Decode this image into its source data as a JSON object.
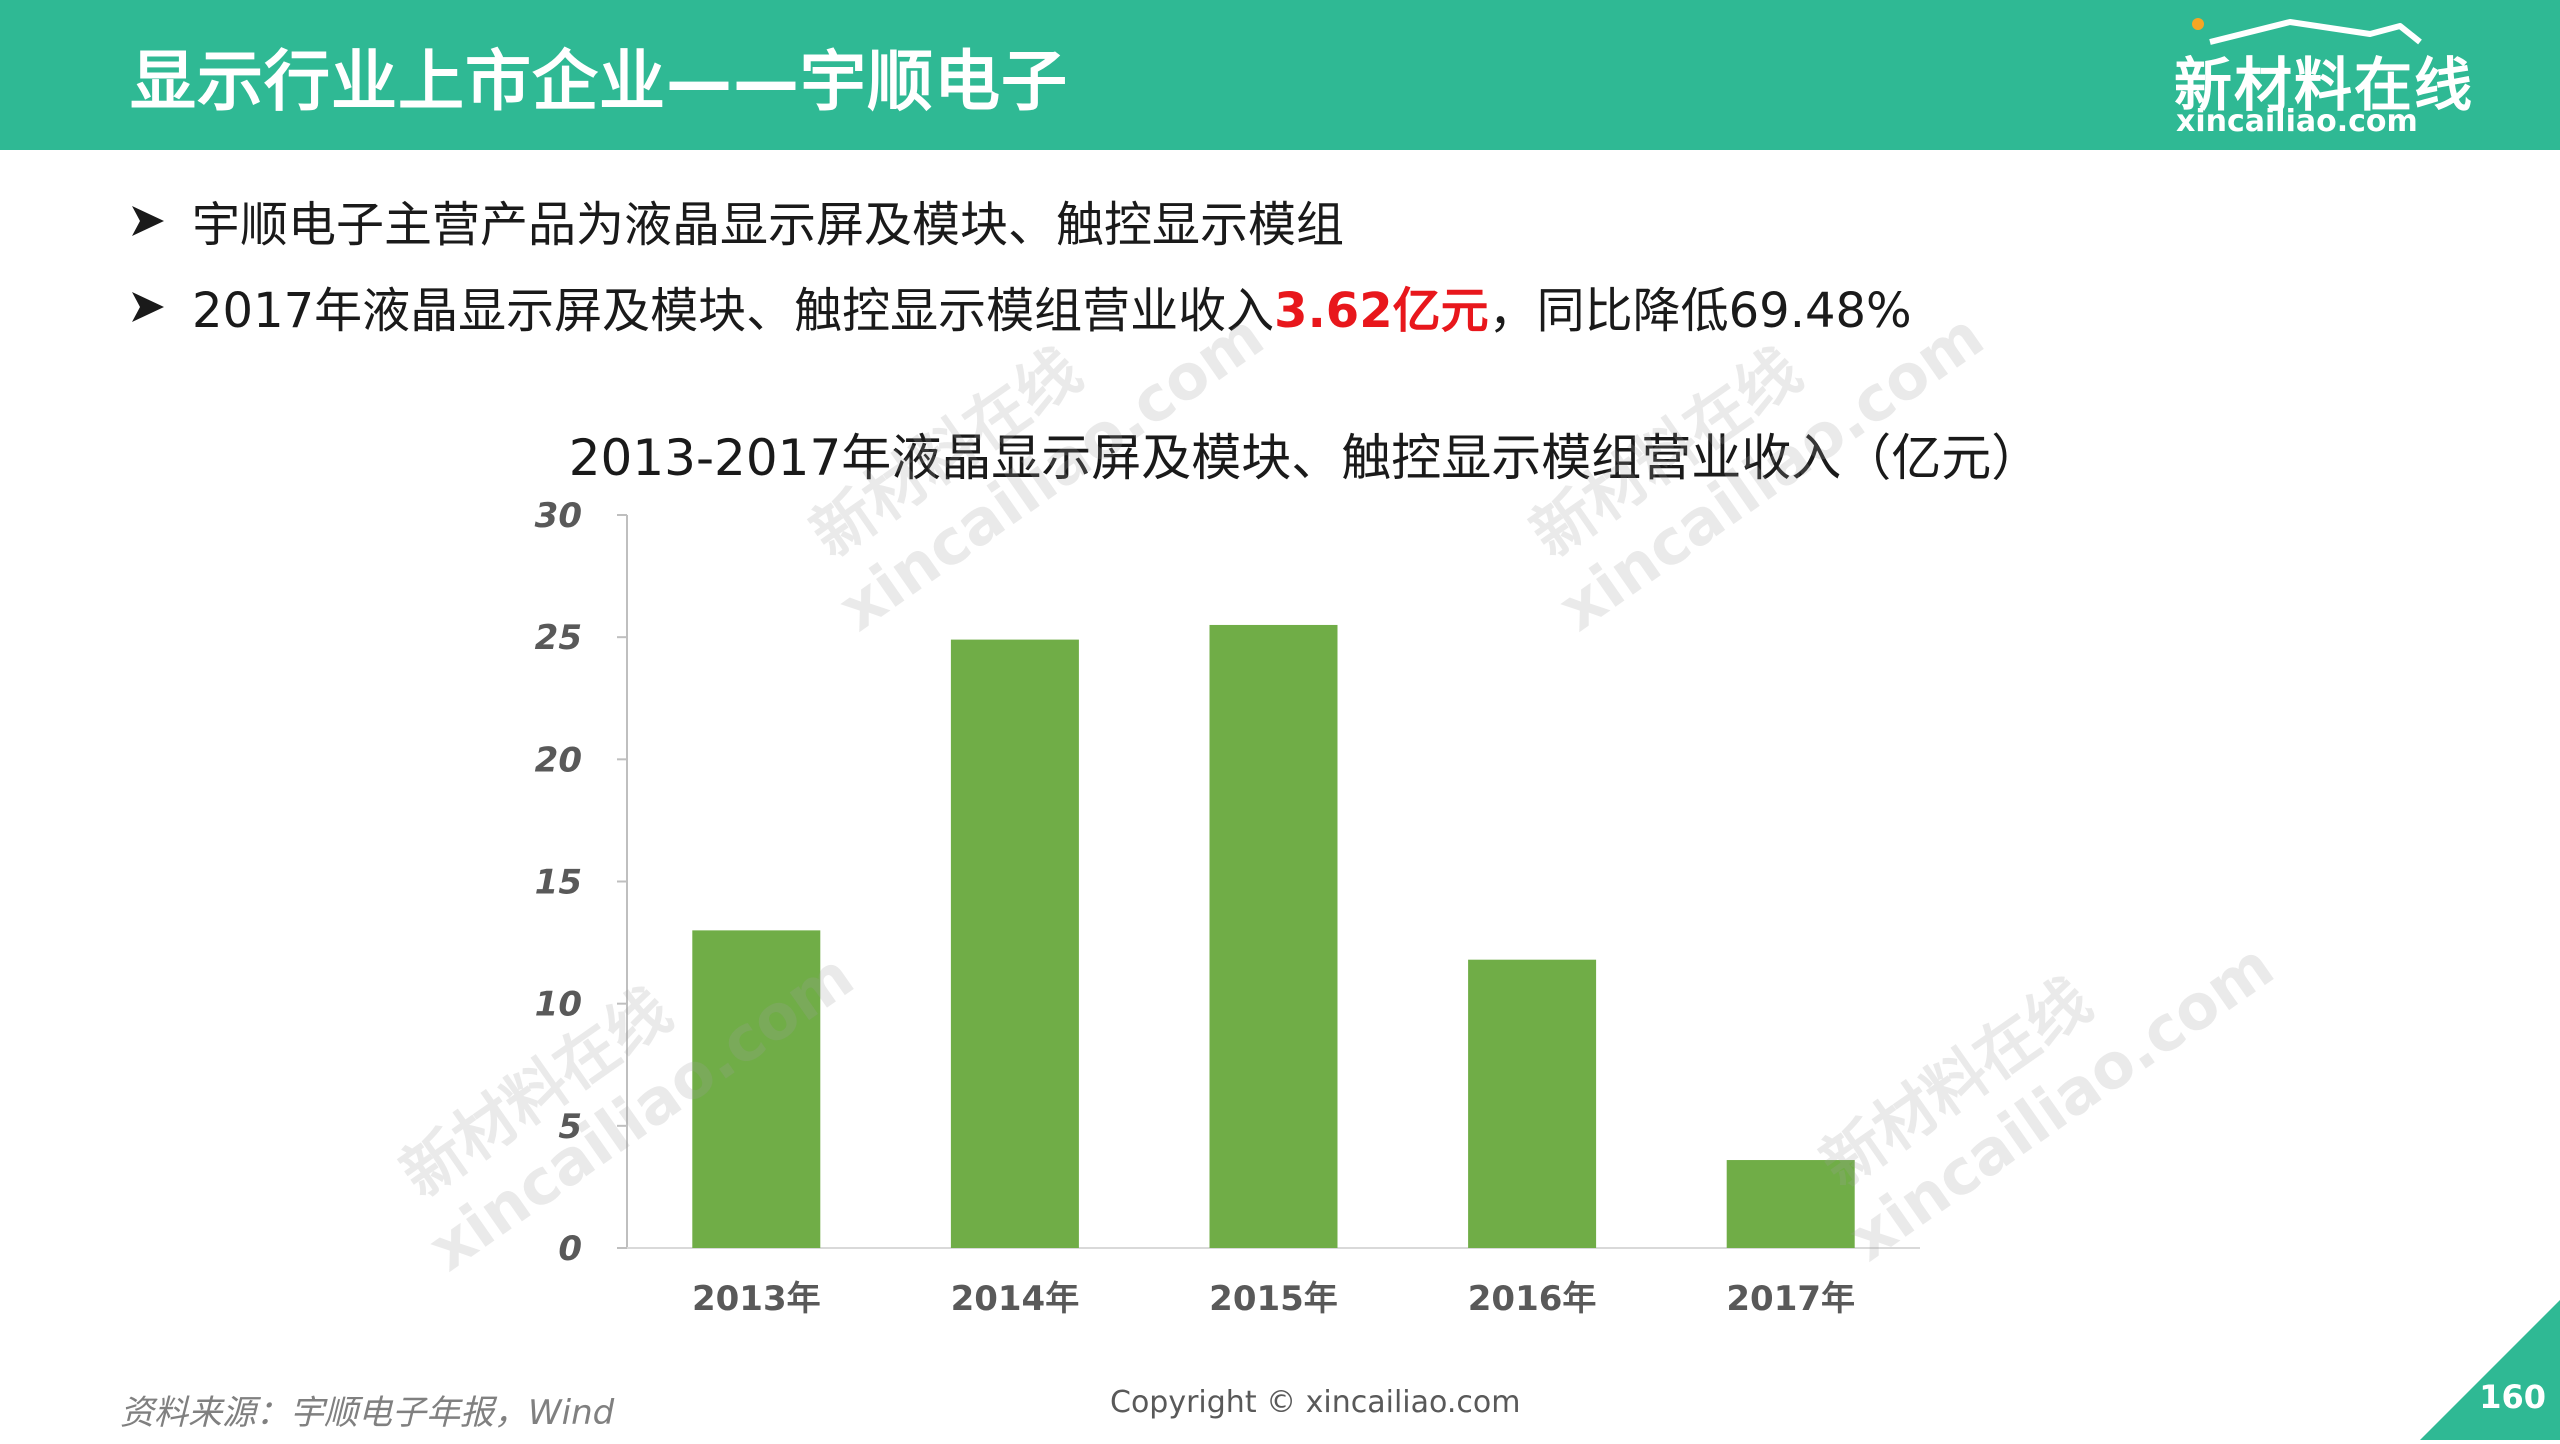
{
  "header": {
    "title": "显示行业上市企业——宇顺电子",
    "logo_text": "新材料在线",
    "logo_url": "xincailiao.com"
  },
  "bullets": [
    {
      "text": "宇顺电子主营产品为液晶显示屏及模块、触控显示模组"
    },
    {
      "prefix": "2017年液晶显示屏及模块、触控显示模组营业收入",
      "highlight": "3.62亿元",
      "suffix": "，同比降低69.48%"
    }
  ],
  "chart_data": {
    "type": "bar",
    "title": "2013-2017年液晶显示屏及模块、触控显示模组营业收入（亿元）",
    "categories": [
      "2013年",
      "2014年",
      "2015年",
      "2016年",
      "2017年"
    ],
    "values": [
      13.0,
      24.9,
      25.5,
      11.8,
      3.6
    ],
    "ylim": [
      0,
      30
    ],
    "yticks": [
      "0",
      "5",
      "10",
      "15",
      "20",
      "25",
      "30"
    ],
    "xlabel": "",
    "ylabel": "",
    "bar_color": "#70ad47",
    "grid": false
  },
  "watermark": {
    "line1": "新材料在线",
    "line2": "xincailiao.com"
  },
  "footer": {
    "source": "资料来源：宇顺电子年报，Wind",
    "copyright": "Copyright © xincailiao.com",
    "page_number": "160"
  },
  "colors": {
    "header_bg": "#2fb994",
    "accent_red": "#e8171c",
    "bar": "#70ad47"
  }
}
